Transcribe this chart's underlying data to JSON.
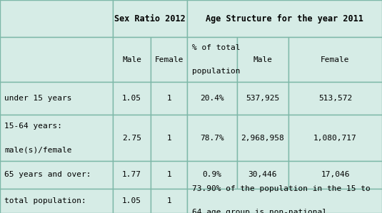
{
  "bg_color": "#d6ece6",
  "border_color": "#7db8a8",
  "text_color": "#000000",
  "fig_bg": "#ffffff",
  "font_size": 8.0,
  "header_font_size": 8.5,
  "col_bounds": [
    0.0,
    0.295,
    0.395,
    0.49,
    0.62,
    0.755,
    1.0
  ],
  "row_tops": [
    1.0,
    0.825,
    0.615,
    0.46,
    0.245,
    0.115,
    0.0
  ],
  "header1": {
    "sex_ratio": "Sex Ratio 2012",
    "age_struct": "Age Structure for the year 2011"
  },
  "header2": [
    "",
    "Male",
    "Female",
    "% of total\n\npopulation",
    "Male",
    "Female"
  ],
  "data_rows": [
    [
      "under 15 years",
      "1.05",
      "1",
      "20.4%",
      "537,925",
      "513,572"
    ],
    [
      "15-64 years:\n\nmale(s)/female",
      "2.75",
      "1",
      "78.7%",
      "2,968,958",
      "1,080,717"
    ],
    [
      "65 years and over:",
      "1.77",
      "1",
      "0.9%",
      "30,446",
      "17,046"
    ],
    [
      "total population:",
      "1.05",
      "1",
      "73.90% of the population in the 15 to\n\n64 age group is non-national",
      "",
      ""
    ]
  ],
  "lw": 1.0
}
